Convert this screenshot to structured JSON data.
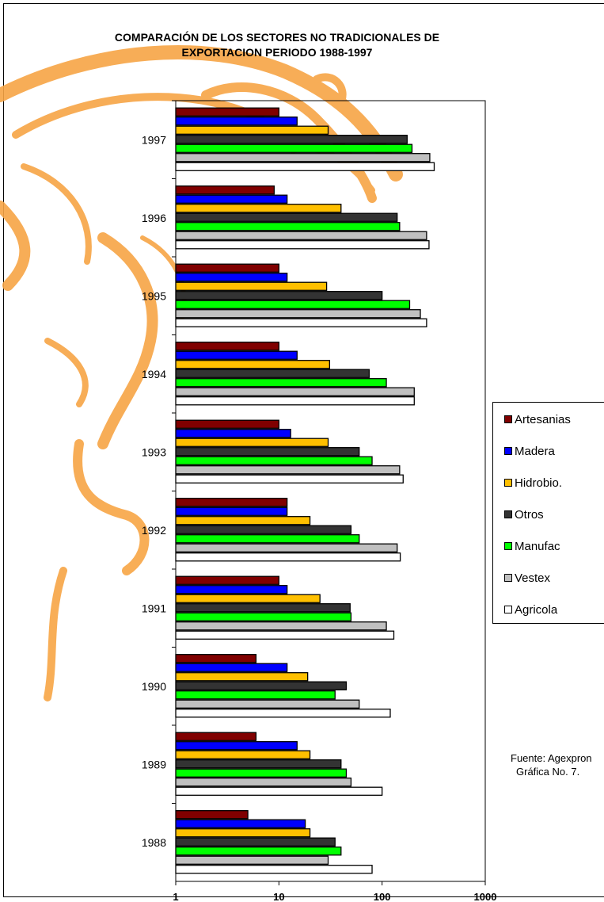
{
  "chart_data": {
    "type": "bar",
    "orientation": "horizontal",
    "title": "COMPARACIÓN DE LOS SECTORES NO TRADICIONALES DE",
    "subtitle": "EXPORTACION PERIODO 1988-1997",
    "x_scale": "log",
    "xlim": [
      1,
      1000
    ],
    "x_ticks": [
      "1",
      "10",
      "100",
      "1000"
    ],
    "categories": [
      "1997",
      "1996",
      "1995",
      "1994",
      "1993",
      "1992",
      "1991",
      "1990",
      "1989",
      "1988"
    ],
    "series": [
      {
        "name": "Artesanias",
        "color": "#800000",
        "values": [
          10,
          9,
          10,
          10,
          10,
          12,
          10,
          6,
          6,
          5
        ]
      },
      {
        "name": "Madera",
        "color": "#0000ff",
        "values": [
          15,
          12,
          12,
          15,
          13,
          12,
          12,
          12,
          15,
          18
        ]
      },
      {
        "name": "Hidrobio.",
        "color": "#ffc000",
        "values": [
          30,
          40,
          29,
          31,
          30,
          20,
          25,
          19,
          20,
          20
        ]
      },
      {
        "name": "Otros",
        "color": "#333333",
        "values": [
          175,
          140,
          100,
          75,
          60,
          50,
          49,
          45,
          40,
          35
        ]
      },
      {
        "name": "Manufac",
        "color": "#00ff00",
        "values": [
          195,
          148,
          185,
          110,
          80,
          60,
          50,
          35,
          45,
          40
        ]
      },
      {
        "name": "Vestex",
        "color": "#c0c0c0",
        "values": [
          290,
          270,
          235,
          205,
          148,
          140,
          110,
          60,
          50,
          30
        ]
      },
      {
        "name": "Agricola",
        "color": "#ffffff",
        "values": [
          320,
          285,
          270,
          205,
          160,
          150,
          130,
          120,
          100,
          80
        ]
      }
    ],
    "legend_position": "right",
    "grid": false,
    "annotations": [
      "Fuente: Agexpron",
      "Gráfica No. 7."
    ]
  }
}
